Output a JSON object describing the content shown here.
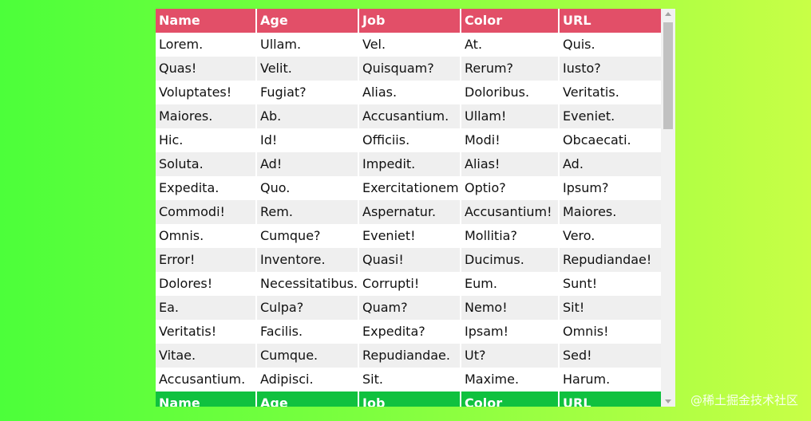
{
  "table": {
    "headers": [
      "Name",
      "Age",
      "Job",
      "Color",
      "URL"
    ],
    "rows": [
      [
        "Lorem.",
        "Ullam.",
        "Vel.",
        "At.",
        "Quis."
      ],
      [
        "Quas!",
        "Velit.",
        "Quisquam?",
        "Rerum?",
        "Iusto?"
      ],
      [
        "Voluptates!",
        "Fugiat?",
        "Alias.",
        "Doloribus.",
        "Veritatis."
      ],
      [
        "Maiores.",
        "Ab.",
        "Accusantium.",
        "Ullam!",
        "Eveniet."
      ],
      [
        "Hic.",
        "Id!",
        "Officiis.",
        "Modi!",
        "Obcaecati."
      ],
      [
        "Soluta.",
        "Ad!",
        "Impedit.",
        "Alias!",
        "Ad."
      ],
      [
        "Expedita.",
        "Quo.",
        "Exercitationem!",
        "Optio?",
        "Ipsum?"
      ],
      [
        "Commodi!",
        "Rem.",
        "Aspernatur.",
        "Accusantium!",
        "Maiores."
      ],
      [
        "Omnis.",
        "Cumque?",
        "Eveniet!",
        "Mollitia?",
        "Vero."
      ],
      [
        "Error!",
        "Inventore.",
        "Quasi!",
        "Ducimus.",
        "Repudiandae!"
      ],
      [
        "Dolores!",
        "Necessitatibus.",
        "Corrupti!",
        "Eum.",
        "Sunt!"
      ],
      [
        "Ea.",
        "Culpa?",
        "Quam?",
        "Nemo!",
        "Sit!"
      ],
      [
        "Veritatis!",
        "Facilis.",
        "Expedita?",
        "Ipsam!",
        "Omnis!"
      ],
      [
        "Vitae.",
        "Cumque.",
        "Repudiandae.",
        "Ut?",
        "Sed!"
      ],
      [
        "Accusantium.",
        "Adipisci.",
        "Sit.",
        "Maxime.",
        "Harum."
      ]
    ],
    "footer": [
      "Name",
      "Age",
      "Job",
      "Color",
      "URL"
    ]
  },
  "watermark": "@稀土掘金技术社区",
  "colors": {
    "header_bg": "#e24f68",
    "footer_bg": "#10c13f",
    "stripe_bg": "#efefef",
    "background_gradient": [
      "#4cff3a",
      "#c8ff46"
    ]
  }
}
